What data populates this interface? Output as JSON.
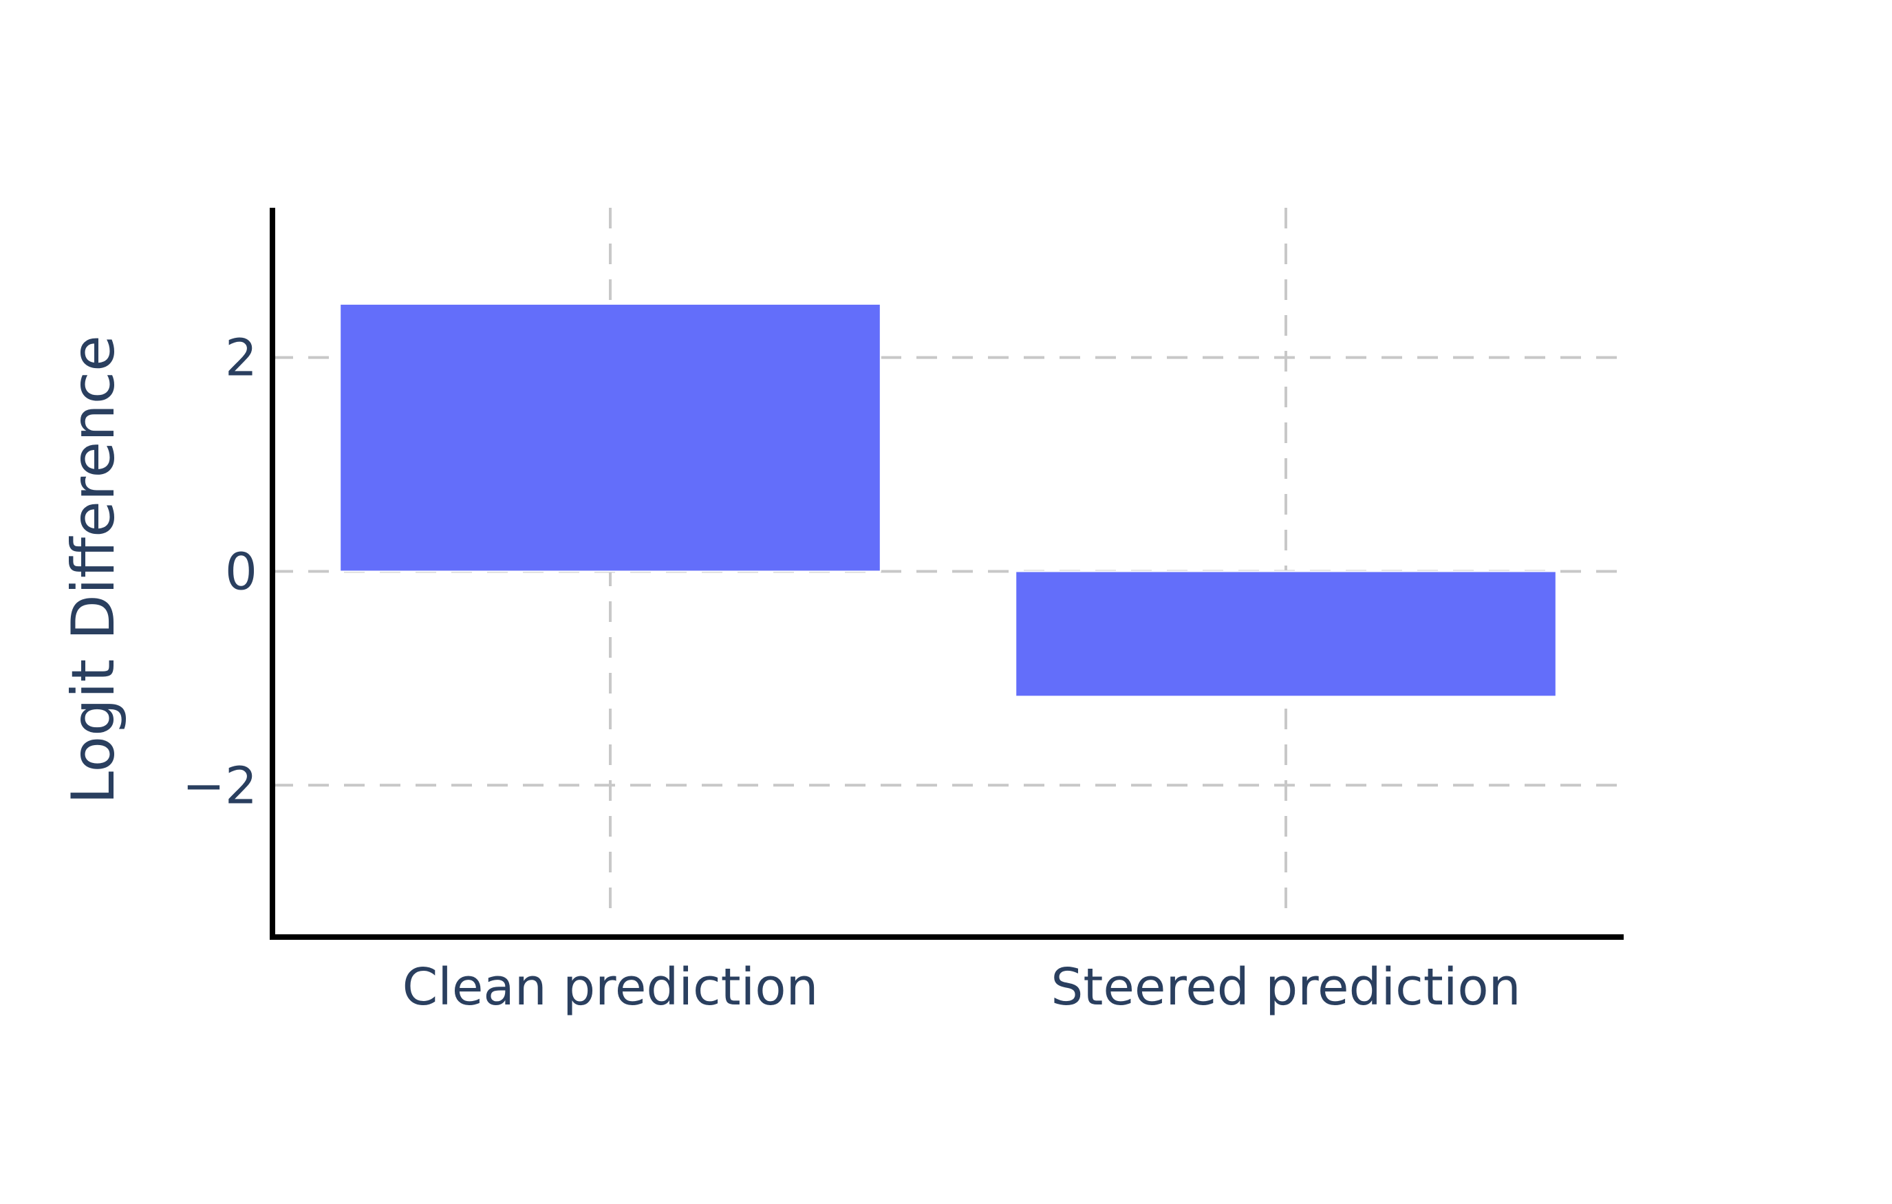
{
  "chart_data": {
    "type": "bar",
    "title": "",
    "xlabel": "",
    "ylabel": "Logit Difference",
    "categories": [
      "Clean prediction",
      "Steered prediction"
    ],
    "values": [
      2.5,
      -1.17
    ],
    "ylim": [
      -3.42,
      3.4
    ],
    "yticks": [
      -2,
      0,
      2
    ],
    "ytick_labels": [
      "−2",
      "0",
      "2"
    ],
    "grid": true,
    "bar_color": "#636efa",
    "grid_color": "#c8c8c8",
    "text_color": "#2a3f5f"
  }
}
